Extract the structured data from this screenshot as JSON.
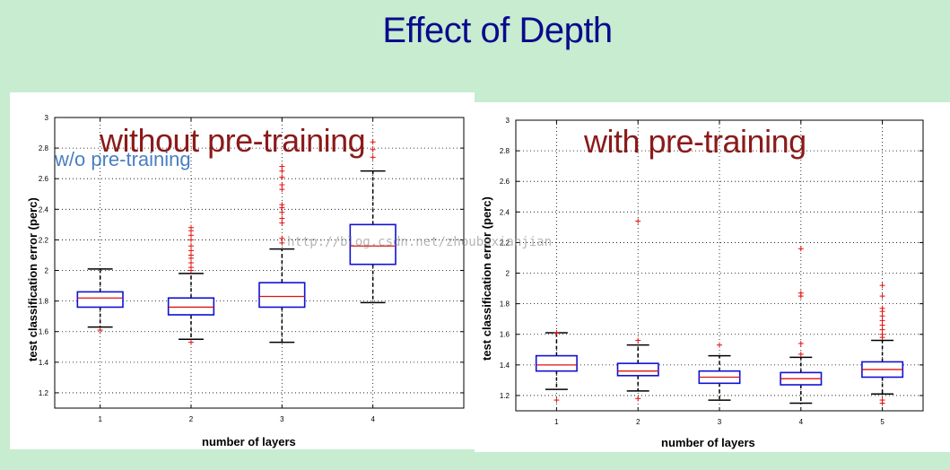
{
  "slide": {
    "title": "Effect of Depth",
    "watermark": "http://blog.csdn.net/zhoubuxianjian"
  },
  "chart_data": [
    {
      "type": "box",
      "overlay_title": "without pre-training",
      "overlay_subtitle": "w/o pre-training",
      "xlabel": "number of layers",
      "ylabel": "test classification error (perc)",
      "ylim": [
        1.1,
        3.0
      ],
      "yticks": [
        1.2,
        1.4,
        1.6,
        1.8,
        2.0,
        2.2,
        2.4,
        2.6,
        2.8,
        3.0
      ],
      "ytick_labels": [
        "1.2",
        "1.4",
        "1.6",
        "1.8",
        "2",
        "2.2",
        "2.4",
        "2.6",
        "2.8",
        "3"
      ],
      "xlim": [
        0.5,
        5.0
      ],
      "categories": [
        "1",
        "2",
        "3",
        "4"
      ],
      "grid": true,
      "boxes": [
        {
          "x": 1,
          "whisker_low": 1.63,
          "q1": 1.76,
          "median": 1.82,
          "q3": 1.86,
          "whisker_high": 2.01,
          "outliers": [
            1.61
          ]
        },
        {
          "x": 2,
          "whisker_low": 1.55,
          "q1": 1.71,
          "median": 1.76,
          "q3": 1.82,
          "whisker_high": 1.98,
          "outliers": [
            1.53,
            2.0,
            2.02,
            2.05,
            2.08,
            2.1,
            2.13,
            2.16,
            2.2,
            2.23,
            2.26,
            2.28
          ]
        },
        {
          "x": 3,
          "whisker_low": 1.53,
          "q1": 1.76,
          "median": 1.83,
          "q3": 1.92,
          "whisker_high": 2.14,
          "outliers": [
            2.18,
            2.21,
            2.31,
            2.34,
            2.38,
            2.41,
            2.43,
            2.53,
            2.56,
            2.61,
            2.65,
            2.68
          ]
        },
        {
          "x": 4,
          "whisker_low": 1.79,
          "q1": 2.04,
          "median": 2.16,
          "q3": 2.3,
          "whisker_high": 2.65,
          "outliers": [
            2.74,
            2.79,
            2.84
          ]
        }
      ]
    },
    {
      "type": "box",
      "overlay_title": "with pre-training",
      "xlabel": "number of layers",
      "ylabel": "test classification error (perc)",
      "ylim": [
        1.1,
        3.0
      ],
      "yticks": [
        1.2,
        1.4,
        1.6,
        1.8,
        2.0,
        2.2,
        2.4,
        2.6,
        2.8,
        3.0
      ],
      "ytick_labels": [
        "1.2",
        "1.4",
        "1.6",
        "1.8",
        "2",
        "2.2",
        "2.4",
        "2.6",
        "2.8",
        "3"
      ],
      "xlim": [
        0.5,
        5.5
      ],
      "categories": [
        "1",
        "2",
        "3",
        "4",
        "5"
      ],
      "grid": true,
      "boxes": [
        {
          "x": 1,
          "whisker_low": 1.24,
          "q1": 1.36,
          "median": 1.4,
          "q3": 1.46,
          "whisker_high": 1.61,
          "outliers": [
            1.17,
            1.61
          ]
        },
        {
          "x": 2,
          "whisker_low": 1.23,
          "q1": 1.33,
          "median": 1.36,
          "q3": 1.41,
          "whisker_high": 1.53,
          "outliers": [
            1.18,
            1.56,
            2.34
          ]
        },
        {
          "x": 3,
          "whisker_low": 1.17,
          "q1": 1.28,
          "median": 1.32,
          "q3": 1.36,
          "whisker_high": 1.46,
          "outliers": [
            1.53
          ]
        },
        {
          "x": 4,
          "whisker_low": 1.15,
          "q1": 1.27,
          "median": 1.31,
          "q3": 1.35,
          "whisker_high": 1.45,
          "outliers": [
            1.47,
            1.54,
            1.85,
            1.87,
            2.16
          ]
        },
        {
          "x": 5,
          "whisker_low": 1.21,
          "q1": 1.32,
          "median": 1.37,
          "q3": 1.42,
          "whisker_high": 1.56,
          "outliers": [
            1.15,
            1.17,
            1.58,
            1.6,
            1.63,
            1.66,
            1.69,
            1.72,
            1.75,
            1.77,
            1.85,
            1.92
          ]
        }
      ]
    }
  ]
}
